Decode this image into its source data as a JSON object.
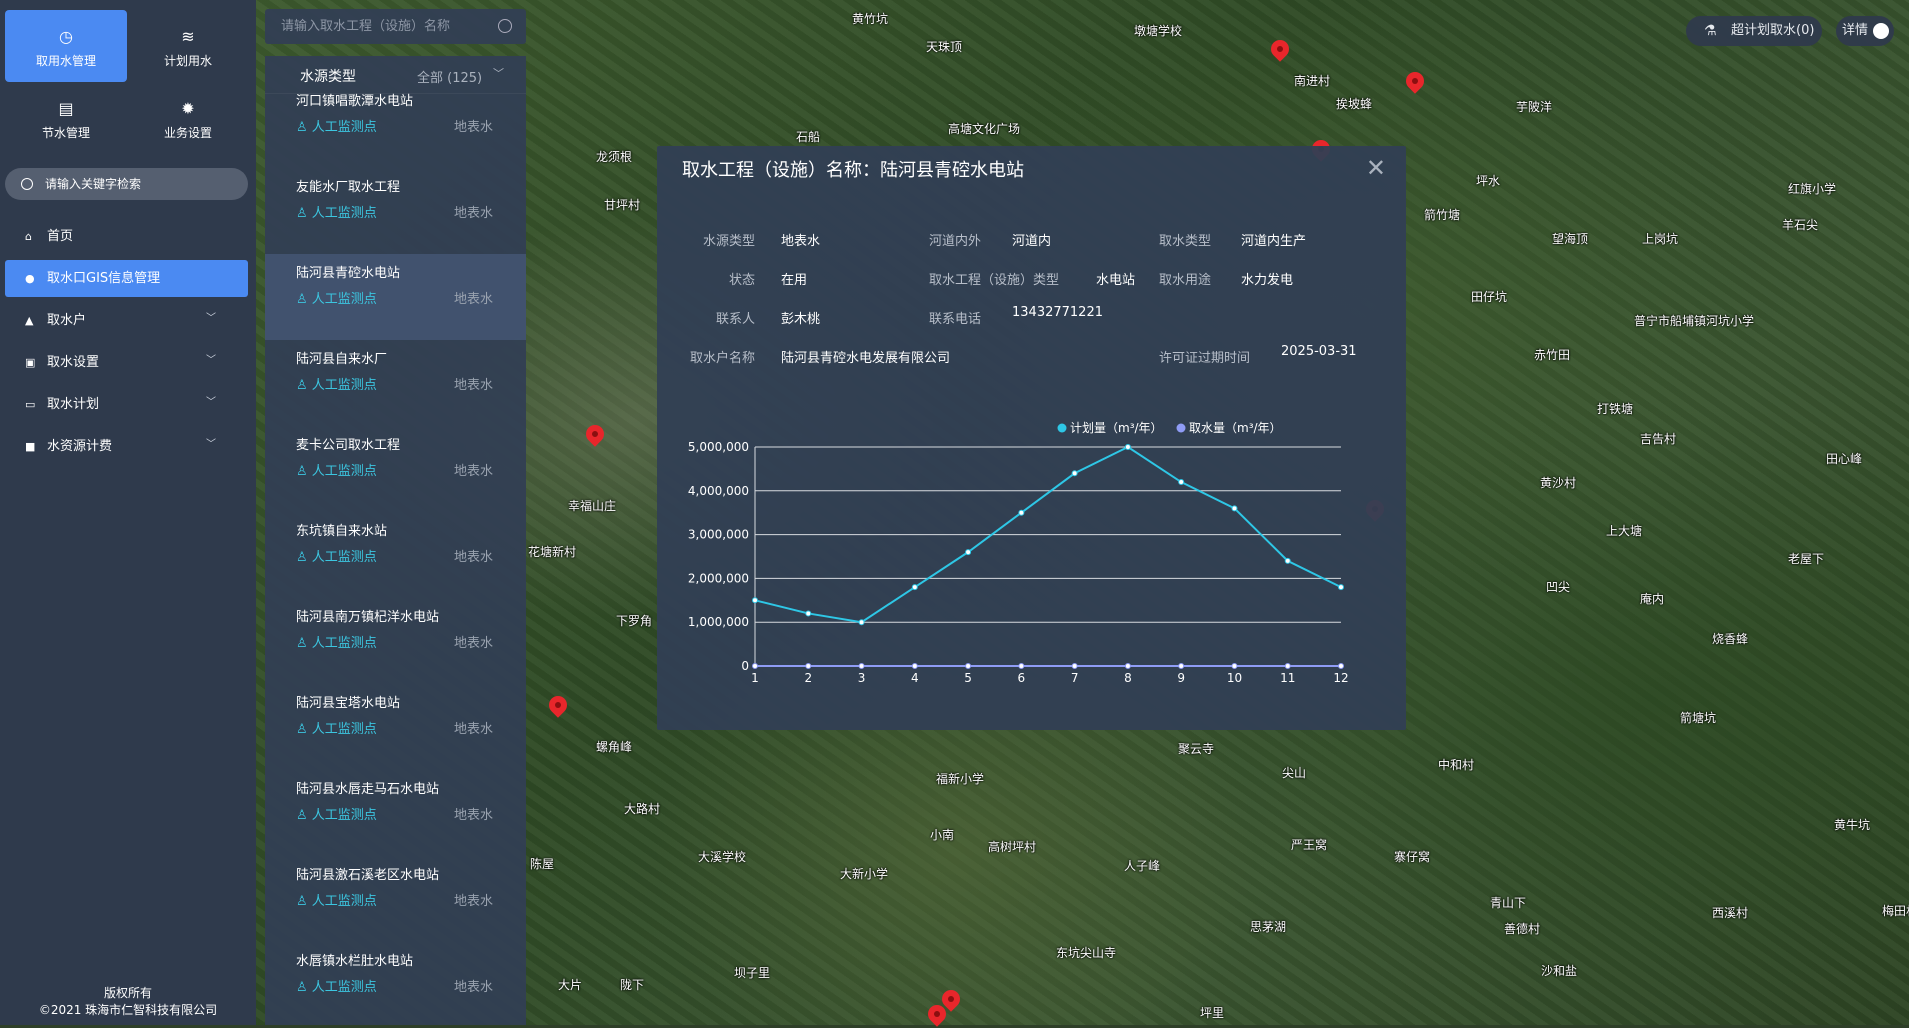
{
  "sidebar": {
    "tiles": [
      {
        "label": "取用水管理",
        "icon": "gauge-icon"
      },
      {
        "label": "计划用水",
        "icon": "water-waves-icon"
      },
      {
        "label": "节水管理",
        "icon": "document-icon"
      },
      {
        "label": "业务设置",
        "icon": "gear-icon"
      }
    ],
    "search_placeholder": "请输入关键字检索",
    "menu": [
      {
        "label": "首页",
        "icon": "home-icon"
      },
      {
        "label": "取水口GIS信息管理",
        "icon": "location-pin-icon",
        "active": true
      },
      {
        "label": "取水户",
        "icon": "user-icon"
      },
      {
        "label": "取水设置",
        "icon": "database-icon"
      },
      {
        "label": "取水计划",
        "icon": "calendar-icon"
      },
      {
        "label": "水资源计费",
        "icon": "chart-icon"
      }
    ],
    "footer": {
      "line1": "版权所有",
      "line2": "©2021 珠海市仁智科技有限公司"
    }
  },
  "list": {
    "search_placeholder": "请输入取水工程（设施）名称",
    "filter_label": "水源类型",
    "filter_value": "全部 (125)",
    "items": [
      {
        "name": "河口镇唱歌潭水电站",
        "tag": "人工监测点",
        "source": "地表水"
      },
      {
        "name": "友能水厂取水工程",
        "tag": "人工监测点",
        "source": "地表水"
      },
      {
        "name": "陆河县青硿水电站",
        "tag": "人工监测点",
        "source": "地表水",
        "selected": true
      },
      {
        "name": "陆河县自来水厂",
        "tag": "人工监测点",
        "source": "地表水"
      },
      {
        "name": "麦卡公司取水工程",
        "tag": "人工监测点",
        "source": "地表水"
      },
      {
        "name": "东坑镇自来水站",
        "tag": "人工监测点",
        "source": "地表水"
      },
      {
        "name": "陆河县南万镇杞洋水电站",
        "tag": "人工监测点",
        "source": "地表水"
      },
      {
        "name": "陆河县宝塔水电站",
        "tag": "人工监测点",
        "source": "地表水"
      },
      {
        "name": "陆河县水唇走马石水电站",
        "tag": "人工监测点",
        "source": "地表水"
      },
      {
        "name": "陆河县激石溪老区水电站",
        "tag": "人工监测点",
        "source": "地表水"
      },
      {
        "name": "水唇镇水栏肚水电站",
        "tag": "人工监测点",
        "source": "地表水"
      }
    ]
  },
  "topright": {
    "over_plan": "超计划取水(0)",
    "details": "详情"
  },
  "popup": {
    "title": "取水工程（设施）名称：陆河县青硿水电站",
    "fields": {
      "water_source_label": "水源类型",
      "water_source": "地表水",
      "river_label": "河道内外",
      "river": "河道内",
      "intake_type_label": "取水类型",
      "intake_type": "河道内生产",
      "status_label": "状态",
      "status": "在用",
      "facility_type_label": "取水工程（设施）类型",
      "facility_type": "水电站",
      "usage_label": "取水用途",
      "usage": "水力发电",
      "contact_label": "联系人",
      "contact": "彭木桃",
      "phone_label": "联系电话",
      "phone": "13432771221",
      "owner_label": "取水户名称",
      "owner": "陆河县青硿水电发展有限公司",
      "license_label": "许可证过期时间",
      "license": "2025-03-31"
    }
  },
  "chart_data": {
    "type": "line",
    "categories": [
      "1",
      "2",
      "3",
      "4",
      "5",
      "6",
      "7",
      "8",
      "9",
      "10",
      "11",
      "12"
    ],
    "series": [
      {
        "name": "计划量（m³/年）",
        "color": "#2ec7e6",
        "values": [
          1500000,
          1200000,
          1000000,
          1800000,
          2600000,
          3500000,
          4400000,
          5000000,
          4200000,
          3600000,
          2400000,
          1800000
        ]
      },
      {
        "name": "取水量（m³/年）",
        "color": "#8f9cf5",
        "values": [
          0,
          0,
          0,
          0,
          0,
          0,
          0,
          0,
          0,
          0,
          0,
          0
        ]
      }
    ],
    "yticks": [
      "0",
      "1,000,000",
      "2,000,000",
      "3,000,000",
      "4,000,000",
      "5,000,000"
    ],
    "ylim": [
      0,
      5000000
    ],
    "grid": true,
    "legend": "top-right"
  },
  "map": {
    "places": [
      "黄竹坑",
      "天珠顶",
      "墩塘学校",
      "南进村",
      "挨坡蜂",
      "芋陂洋",
      "高塘文化广场",
      "龙须根",
      "石船",
      "甘坪村",
      "坪水",
      "箭竹塘",
      "望海顶",
      "上岗坑",
      "红旗小学",
      "羊石尖",
      "田仔坑",
      "赤竹田",
      "普宁市船埔镇河坑小学",
      "打铁塘",
      "吉告村",
      "田心峰",
      "黄沙村",
      "上大塘",
      "老屋下",
      "凹尖",
      "庵内",
      "烧香蜂",
      "幸福山庄",
      "花塘新村",
      "下罗角",
      "螺角峰",
      "福新小学",
      "大溪学校",
      "大新小学",
      "聚云寺",
      "尖山",
      "人子峰",
      "东坑尖山寺",
      "严王窝",
      "寨仔窝",
      "中和村",
      "青山下",
      "善德村",
      "西溪村",
      "梅田村",
      "沙和盐",
      "思茅湖",
      "箭塘坑",
      "黄牛坑",
      "大路村",
      "小南",
      "高树坪村",
      "陈屋",
      "坝子里",
      "陇下",
      "大片",
      "坪里"
    ]
  }
}
